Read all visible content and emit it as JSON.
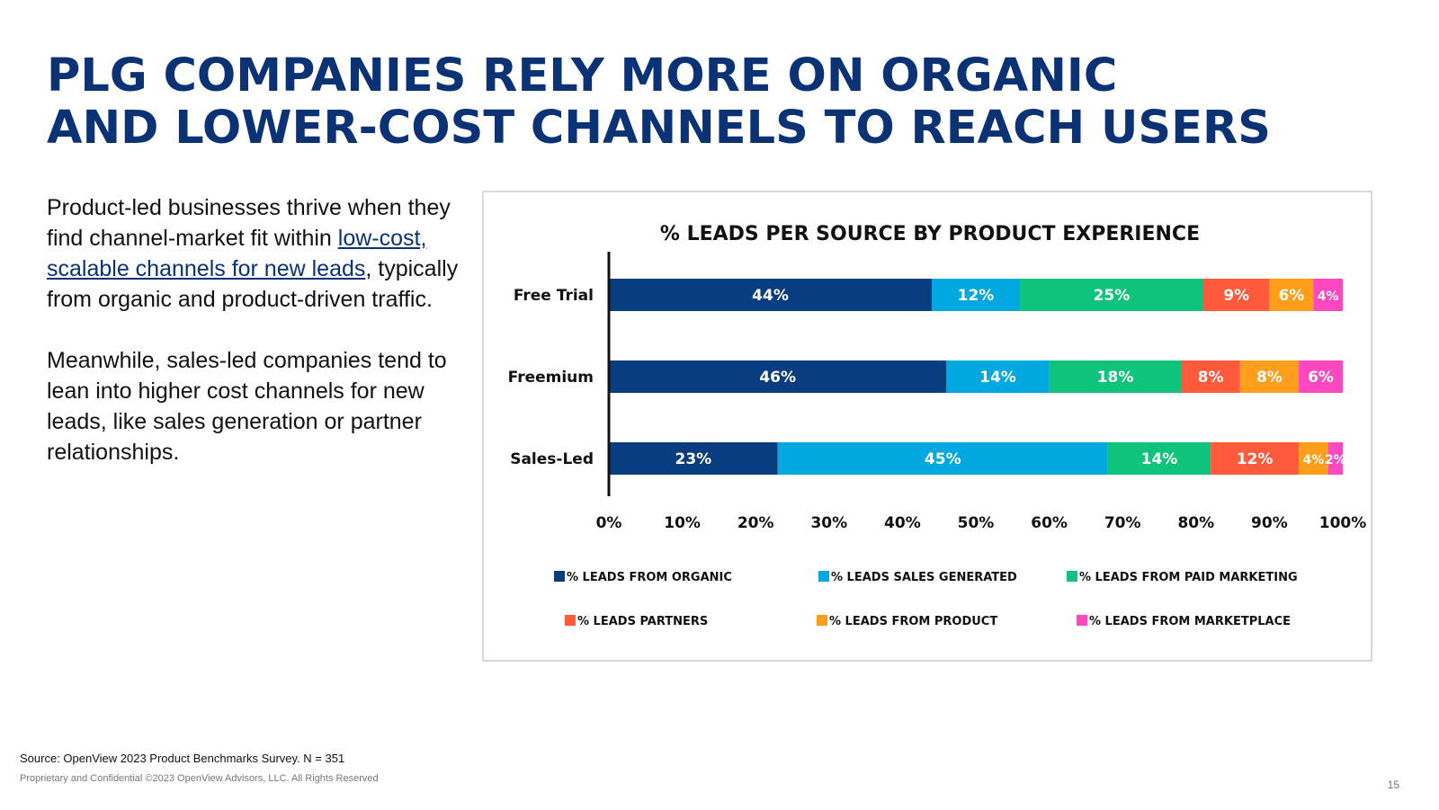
{
  "slide": {
    "title_line1": "PLG COMPANIES RELY MORE ON ORGANIC",
    "title_line2": "AND LOWER-COST CHANNELS TO REACH USERS",
    "para1_before": "Product-led businesses thrive when they find channel-market fit within ",
    "para1_link": "low-cost, scalable channels for new leads",
    "para1_after": ", typically from organic and product-driven traffic.",
    "para2": "Meanwhile, sales-led companies tend to lean into higher cost channels for new leads, like sales generation or partner relationships.",
    "source": "Source: OpenView 2023 Product Benchmarks Survey. N = 351",
    "copyright": "Proprietary and Confidential ©2023 OpenView Advisors, LLC. All Rights Reserved",
    "page_number": "15"
  },
  "chart_data": {
    "type": "bar",
    "orientation": "horizontal",
    "stacked": true,
    "title": "% LEADS PER SOURCE BY PRODUCT EXPERIENCE",
    "categories": [
      "Free Trial",
      "Freemium",
      "Sales-Led"
    ],
    "xlim": [
      0,
      100
    ],
    "x_ticks": [
      "0%",
      "10%",
      "20%",
      "30%",
      "40%",
      "50%",
      "60%",
      "70%",
      "80%",
      "90%",
      "100%"
    ],
    "legend_position": "bottom",
    "series": [
      {
        "name": "% LEADS FROM ORGANIC",
        "color": "#0a3d80",
        "values": [
          44,
          46,
          23
        ],
        "labels": [
          "44%",
          "46%",
          "23%"
        ]
      },
      {
        "name": "% LEADS SALES GENERATED",
        "color": "#00a8e1",
        "values": [
          12,
          14,
          45
        ],
        "labels": [
          "12%",
          "14%",
          "45%"
        ]
      },
      {
        "name": "% LEADS FROM PAID MARKETING",
        "color": "#0fc37a",
        "values": [
          25,
          18,
          14
        ],
        "labels": [
          "25%",
          "18%",
          "14%"
        ]
      },
      {
        "name": "% LEADS PARTNERS",
        "color": "#ff5a3c",
        "values": [
          9,
          8,
          12
        ],
        "labels": [
          "9%",
          "8%",
          "12%"
        ]
      },
      {
        "name": "% LEADS FROM PRODUCT",
        "color": "#ff9e1b",
        "values": [
          6,
          8,
          4
        ],
        "labels": [
          "6%",
          "8%",
          "4%"
        ]
      },
      {
        "name": "% LEADS FROM MARKETPLACE",
        "color": "#ff47bf",
        "values": [
          4,
          6,
          2
        ],
        "labels": [
          "4%",
          "6%",
          "2%"
        ]
      }
    ]
  }
}
